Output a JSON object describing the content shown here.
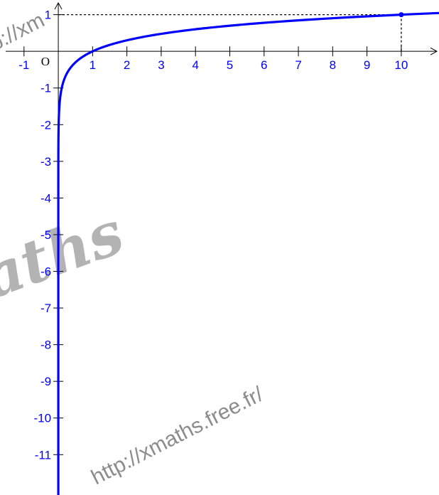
{
  "chart_data": {
    "type": "line",
    "title": "",
    "xlabel": "",
    "ylabel": "",
    "xlim": [
      -1.7,
      11.1
    ],
    "ylim": [
      -12.1,
      1.4
    ],
    "x_ticks": [
      -1,
      1,
      2,
      3,
      4,
      5,
      6,
      7,
      8,
      9,
      10
    ],
    "x_tick_labels": [
      "-1",
      "1",
      "2",
      "3",
      "4",
      "5",
      "6",
      "7",
      "8",
      "9",
      "10"
    ],
    "y_ticks": [
      1,
      -1,
      -2,
      -3,
      -4,
      -5,
      -6,
      -7,
      -8,
      -9,
      -10,
      -11
    ],
    "y_tick_labels": [
      "1",
      "-1",
      "-2",
      "-3",
      "-4",
      "-5",
      "-6",
      "-7",
      "-8",
      "-9",
      "-10",
      "-11"
    ],
    "origin_label": "O",
    "series": [
      {
        "function": "log10(x)",
        "color": "#0000ff"
      }
    ],
    "marked_point": {
      "x": 10,
      "y": 1
    },
    "grid": false
  },
  "watermark": {
    "url": "http://xmaths.free.fr/",
    "top_fragment": "p://xm",
    "script_text": "aths"
  },
  "colors": {
    "curve": "#0000ff",
    "labels": "#0000ff",
    "axes": "#000000",
    "watermark": "#8c8c8c"
  }
}
